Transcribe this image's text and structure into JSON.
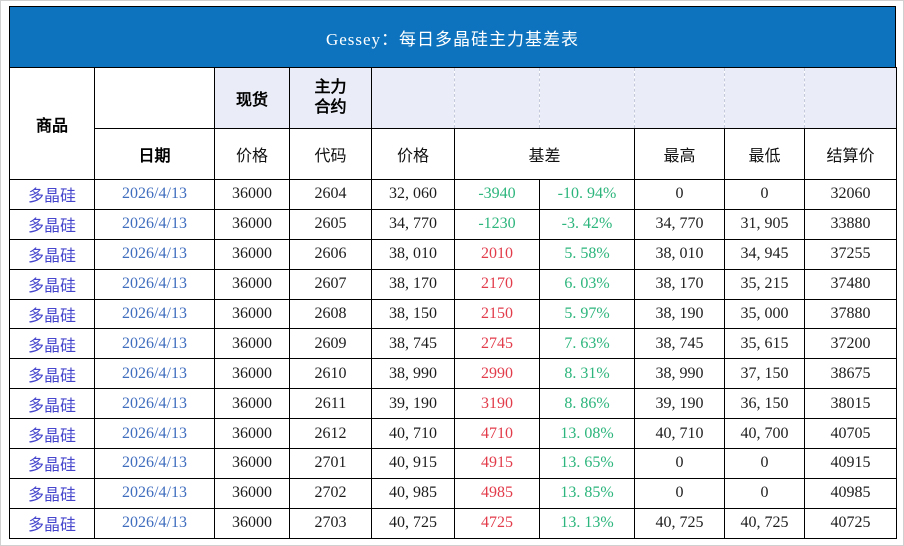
{
  "title": "Gessey：每日多晶硅主力基差表",
  "colors": {
    "title_bar": "#0d73be",
    "title_text": "#ffffff",
    "header_fill": "#eaedf7",
    "grid_line": "#000000",
    "dashed_line": "#c3c9da",
    "commodity_text": "#4545cd",
    "date_text": "#3f6dbe",
    "value_text": "#1c1c1c",
    "positive_basis": "#e23b4a",
    "negative_basis": "#2cb57c",
    "percent_text": "#2cb57c"
  },
  "header": {
    "commodity": "商品",
    "date": "日期",
    "spot": "现货",
    "main_contract_line1": "主力",
    "main_contract_line2": "合约",
    "spot_price": "价格",
    "code": "代码",
    "price": "价格",
    "basis": "基差",
    "high": "最高",
    "low": "最低",
    "settlement": "结算价"
  },
  "chart_data": {
    "type": "table",
    "title": "Gessey：每日多晶硅主力基差表",
    "columns": [
      "商品",
      "日期",
      "现货 价格",
      "主力合约 代码",
      "价格",
      "基差",
      "基差%",
      "最高",
      "最低",
      "结算价"
    ],
    "rows": [
      {
        "commodity": "多晶硅",
        "date": "2026/4/13",
        "spot": "36000",
        "code": "2604",
        "price": "32, 060",
        "basis": "-3940",
        "basis_pct": "-10. 94%",
        "high": "0",
        "low": "0",
        "settle": "32060"
      },
      {
        "commodity": "多晶硅",
        "date": "2026/4/13",
        "spot": "36000",
        "code": "2605",
        "price": "34, 770",
        "basis": "-1230",
        "basis_pct": "-3. 42%",
        "high": "34, 770",
        "low": "31, 905",
        "settle": "33880"
      },
      {
        "commodity": "多晶硅",
        "date": "2026/4/13",
        "spot": "36000",
        "code": "2606",
        "price": "38, 010",
        "basis": "2010",
        "basis_pct": "5. 58%",
        "high": "38, 010",
        "low": "34, 945",
        "settle": "37255"
      },
      {
        "commodity": "多晶硅",
        "date": "2026/4/13",
        "spot": "36000",
        "code": "2607",
        "price": "38, 170",
        "basis": "2170",
        "basis_pct": "6. 03%",
        "high": "38, 170",
        "low": "35, 215",
        "settle": "37480"
      },
      {
        "commodity": "多晶硅",
        "date": "2026/4/13",
        "spot": "36000",
        "code": "2608",
        "price": "38, 150",
        "basis": "2150",
        "basis_pct": "5. 97%",
        "high": "38, 190",
        "low": "35, 000",
        "settle": "37880"
      },
      {
        "commodity": "多晶硅",
        "date": "2026/4/13",
        "spot": "36000",
        "code": "2609",
        "price": "38, 745",
        "basis": "2745",
        "basis_pct": "7. 63%",
        "high": "38, 745",
        "low": "35, 615",
        "settle": "37200"
      },
      {
        "commodity": "多晶硅",
        "date": "2026/4/13",
        "spot": "36000",
        "code": "2610",
        "price": "38, 990",
        "basis": "2990",
        "basis_pct": "8. 31%",
        "high": "38, 990",
        "low": "37, 150",
        "settle": "38675"
      },
      {
        "commodity": "多晶硅",
        "date": "2026/4/13",
        "spot": "36000",
        "code": "2611",
        "price": "39, 190",
        "basis": "3190",
        "basis_pct": "8. 86%",
        "high": "39, 190",
        "low": "36, 150",
        "settle": "38015"
      },
      {
        "commodity": "多晶硅",
        "date": "2026/4/13",
        "spot": "36000",
        "code": "2612",
        "price": "40, 710",
        "basis": "4710",
        "basis_pct": "13. 08%",
        "high": "40, 710",
        "low": "40, 700",
        "settle": "40705"
      },
      {
        "commodity": "多晶硅",
        "date": "2026/4/13",
        "spot": "36000",
        "code": "2701",
        "price": "40, 915",
        "basis": "4915",
        "basis_pct": "13. 65%",
        "high": "0",
        "low": "0",
        "settle": "40915"
      },
      {
        "commodity": "多晶硅",
        "date": "2026/4/13",
        "spot": "36000",
        "code": "2702",
        "price": "40, 985",
        "basis": "4985",
        "basis_pct": "13. 85%",
        "high": "0",
        "low": "0",
        "settle": "40985"
      },
      {
        "commodity": "多晶硅",
        "date": "2026/4/13",
        "spot": "36000",
        "code": "2703",
        "price": "40, 725",
        "basis": "4725",
        "basis_pct": "13. 13%",
        "high": "40, 725",
        "low": "40, 725",
        "settle": "40725"
      }
    ]
  }
}
